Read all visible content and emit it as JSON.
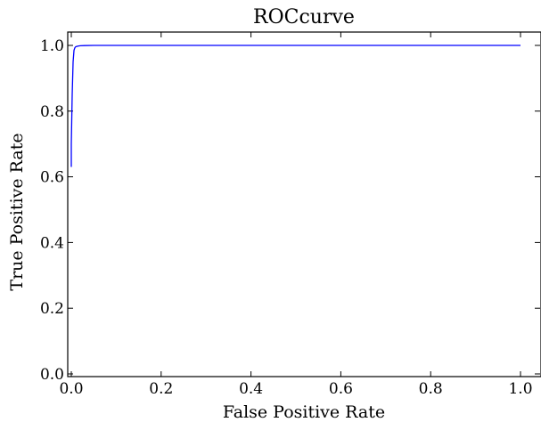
{
  "chart_data": {
    "type": "line",
    "title": "ROCcurve",
    "xlabel": "False Positive Rate",
    "ylabel": "True Positive Rate",
    "xlim": [
      0.0,
      1.0
    ],
    "ylim": [
      0.0,
      1.0
    ],
    "xticks": [
      "0.0",
      "0.2",
      "0.4",
      "0.6",
      "0.8",
      "1.0"
    ],
    "yticks": [
      "0.0",
      "0.2",
      "0.4",
      "0.6",
      "0.8",
      "1.0"
    ],
    "grid": false,
    "series": [
      {
        "color": "#0000ff",
        "x": [
          0.0,
          0.0,
          0.002,
          0.004,
          0.006,
          0.008,
          0.01,
          0.015,
          0.02,
          0.03,
          0.05,
          0.1,
          0.2,
          0.4,
          0.6,
          0.8,
          1.0
        ],
        "y": [
          0.63,
          0.7,
          0.85,
          0.95,
          0.985,
          0.993,
          0.996,
          0.998,
          0.999,
          0.9995,
          1.0,
          1.0,
          1.0,
          1.0,
          1.0,
          1.0,
          1.0
        ]
      }
    ]
  }
}
